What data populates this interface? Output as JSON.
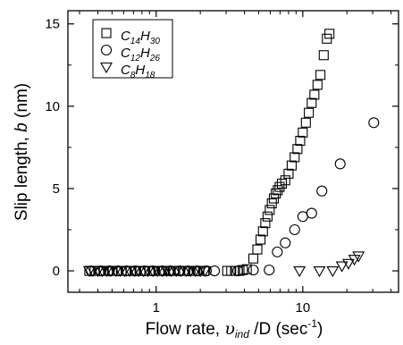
{
  "chart_data": {
    "type": "scatter",
    "title": "",
    "x_scale": "log",
    "xlim": [
      0.25,
      45
    ],
    "ylim": [
      -1.3,
      15.8
    ],
    "grid": false,
    "legend_position": "top-left",
    "x_ticks": [
      {
        "value": 1,
        "label": "1"
      },
      {
        "value": 10,
        "label": "10"
      }
    ],
    "y_ticks": [
      {
        "value": 0,
        "label": "0"
      },
      {
        "value": 5,
        "label": "5"
      },
      {
        "value": 10,
        "label": "10"
      },
      {
        "value": 15,
        "label": "15"
      }
    ],
    "xlabel": {
      "prefix": "Flow rate, ",
      "symbol": "υ",
      "subscript": "ind",
      "suffix_main": " /D (sec",
      "superscript": "-1",
      "suffix_end": ")"
    },
    "ylabel": {
      "prefix": "Slip length, ",
      "italic": "b",
      "suffix": " (nm)"
    },
    "series": [
      {
        "name": "C14H30",
        "legend": {
          "c": "C",
          "n1": "14",
          "h": "H",
          "n2": "30"
        },
        "marker": "square",
        "points": [
          {
            "x": 0.35,
            "y": 0.0
          },
          {
            "x": 0.38,
            "y": 0.0
          },
          {
            "x": 0.41,
            "y": 0.0
          },
          {
            "x": 0.44,
            "y": 0.0
          },
          {
            "x": 0.47,
            "y": 0.0
          },
          {
            "x": 0.5,
            "y": 0.0
          },
          {
            "x": 0.54,
            "y": 0.0
          },
          {
            "x": 0.58,
            "y": 0.0
          },
          {
            "x": 0.62,
            "y": 0.0
          },
          {
            "x": 0.67,
            "y": 0.0
          },
          {
            "x": 0.72,
            "y": 0.0
          },
          {
            "x": 0.78,
            "y": 0.0
          },
          {
            "x": 0.84,
            "y": 0.0
          },
          {
            "x": 0.9,
            "y": 0.0
          },
          {
            "x": 0.97,
            "y": 0.0
          },
          {
            "x": 1.05,
            "y": 0.0
          },
          {
            "x": 1.13,
            "y": 0.0
          },
          {
            "x": 1.22,
            "y": 0.0
          },
          {
            "x": 1.32,
            "y": 0.0
          },
          {
            "x": 1.43,
            "y": 0.0
          },
          {
            "x": 1.55,
            "y": 0.0
          },
          {
            "x": 1.68,
            "y": 0.0
          },
          {
            "x": 1.82,
            "y": 0.0
          },
          {
            "x": 1.97,
            "y": 0.0
          },
          {
            "x": 2.13,
            "y": 0.0
          },
          {
            "x": 3.05,
            "y": 0.0
          },
          {
            "x": 3.25,
            "y": 0.0
          },
          {
            "x": 3.45,
            "y": 0.0
          },
          {
            "x": 3.7,
            "y": 0.0
          },
          {
            "x": 3.9,
            "y": 0.05
          },
          {
            "x": 4.15,
            "y": 0.1
          },
          {
            "x": 4.6,
            "y": 0.75
          },
          {
            "x": 4.9,
            "y": 1.3
          },
          {
            "x": 5.15,
            "y": 1.9
          },
          {
            "x": 5.35,
            "y": 2.4
          },
          {
            "x": 5.55,
            "y": 2.9
          },
          {
            "x": 5.75,
            "y": 3.3
          },
          {
            "x": 5.95,
            "y": 3.7
          },
          {
            "x": 6.15,
            "y": 4.1
          },
          {
            "x": 6.35,
            "y": 4.4
          },
          {
            "x": 6.55,
            "y": 4.7
          },
          {
            "x": 6.75,
            "y": 4.9
          },
          {
            "x": 6.95,
            "y": 5.1
          },
          {
            "x": 7.2,
            "y": 5.3
          },
          {
            "x": 7.6,
            "y": 5.5
          },
          {
            "x": 8.0,
            "y": 5.9
          },
          {
            "x": 8.4,
            "y": 6.4
          },
          {
            "x": 8.8,
            "y": 6.9
          },
          {
            "x": 9.2,
            "y": 7.4
          },
          {
            "x": 9.6,
            "y": 7.9
          },
          {
            "x": 10.0,
            "y": 8.4
          },
          {
            "x": 10.5,
            "y": 9.0
          },
          {
            "x": 11.0,
            "y": 9.6
          },
          {
            "x": 11.5,
            "y": 10.2
          },
          {
            "x": 12.0,
            "y": 10.7
          },
          {
            "x": 12.6,
            "y": 11.3
          },
          {
            "x": 13.2,
            "y": 11.9
          },
          {
            "x": 13.9,
            "y": 13.1
          },
          {
            "x": 14.6,
            "y": 14.1
          },
          {
            "x": 15.2,
            "y": 14.4
          }
        ]
      },
      {
        "name": "C12H26",
        "legend": {
          "c": "C",
          "n1": "12",
          "h": "H",
          "n2": "26"
        },
        "marker": "circle",
        "points": [
          {
            "x": 0.36,
            "y": 0.0
          },
          {
            "x": 0.42,
            "y": 0.0
          },
          {
            "x": 0.48,
            "y": 0.0
          },
          {
            "x": 0.55,
            "y": 0.0
          },
          {
            "x": 0.63,
            "y": 0.0
          },
          {
            "x": 0.72,
            "y": 0.0
          },
          {
            "x": 0.83,
            "y": 0.0
          },
          {
            "x": 0.95,
            "y": 0.0
          },
          {
            "x": 1.1,
            "y": 0.0
          },
          {
            "x": 1.25,
            "y": 0.0
          },
          {
            "x": 1.45,
            "y": 0.0
          },
          {
            "x": 1.65,
            "y": 0.0
          },
          {
            "x": 1.9,
            "y": 0.0
          },
          {
            "x": 2.2,
            "y": 0.0
          },
          {
            "x": 2.5,
            "y": 0.0
          },
          {
            "x": 3.6,
            "y": 0.0
          },
          {
            "x": 4.6,
            "y": 0.05
          },
          {
            "x": 5.9,
            "y": 0.05
          },
          {
            "x": 6.7,
            "y": 1.15
          },
          {
            "x": 7.6,
            "y": 1.7
          },
          {
            "x": 8.8,
            "y": 2.5
          },
          {
            "x": 10.0,
            "y": 3.3
          },
          {
            "x": 11.5,
            "y": 3.5
          },
          {
            "x": 13.5,
            "y": 4.85
          },
          {
            "x": 18.0,
            "y": 6.5
          },
          {
            "x": 30.5,
            "y": 9.0
          }
        ]
      },
      {
        "name": "C8H18",
        "legend": {
          "c": "C",
          "n1": "8",
          "h": "H",
          "n2": "18"
        },
        "marker": "triangle-down",
        "points": [
          {
            "x": 0.35,
            "y": 0.0
          },
          {
            "x": 0.37,
            "y": 0.0
          },
          {
            "x": 0.4,
            "y": 0.0
          },
          {
            "x": 0.43,
            "y": 0.0
          },
          {
            "x": 0.46,
            "y": 0.0
          },
          {
            "x": 0.49,
            "y": 0.0
          },
          {
            "x": 0.53,
            "y": 0.0
          },
          {
            "x": 0.57,
            "y": 0.0
          },
          {
            "x": 0.61,
            "y": 0.0
          },
          {
            "x": 0.66,
            "y": 0.0
          },
          {
            "x": 0.71,
            "y": 0.0
          },
          {
            "x": 0.76,
            "y": 0.0
          },
          {
            "x": 0.82,
            "y": 0.0
          },
          {
            "x": 0.88,
            "y": 0.0
          },
          {
            "x": 0.95,
            "y": 0.0
          },
          {
            "x": 1.02,
            "y": 0.0
          },
          {
            "x": 1.1,
            "y": 0.0
          },
          {
            "x": 1.18,
            "y": 0.0
          },
          {
            "x": 1.27,
            "y": 0.0
          },
          {
            "x": 1.37,
            "y": 0.0
          },
          {
            "x": 1.48,
            "y": 0.0
          },
          {
            "x": 1.6,
            "y": 0.0
          },
          {
            "x": 1.72,
            "y": 0.0
          },
          {
            "x": 1.85,
            "y": 0.0
          },
          {
            "x": 2.0,
            "y": 0.0
          },
          {
            "x": 2.15,
            "y": 0.0
          },
          {
            "x": 9.5,
            "y": 0.0
          },
          {
            "x": 13.0,
            "y": 0.0
          },
          {
            "x": 16.0,
            "y": 0.0
          },
          {
            "x": 18.5,
            "y": 0.3
          },
          {
            "x": 20.5,
            "y": 0.45
          },
          {
            "x": 22.5,
            "y": 0.7
          },
          {
            "x": 24.0,
            "y": 0.9
          }
        ]
      }
    ]
  }
}
